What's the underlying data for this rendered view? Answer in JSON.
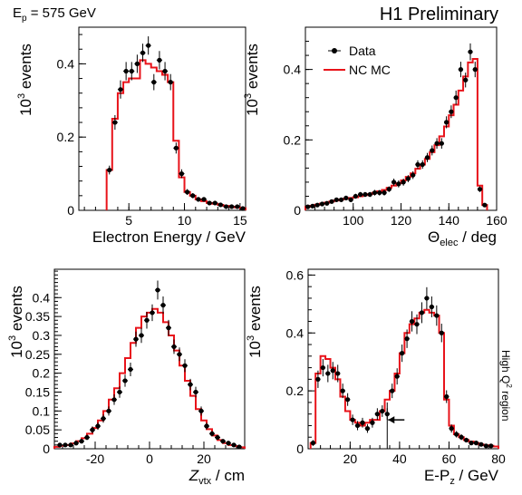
{
  "header": {
    "beam_prefix": "E",
    "beam_sub": "p",
    "beam_suffix": " = 575 GeV",
    "preliminary": "H1 Preliminary"
  },
  "legend": {
    "data_label": "Data",
    "mc_label": "NC MC",
    "placement": "top-left of top-right panel"
  },
  "side_label": {
    "prefix": "High Q",
    "sup": "2",
    "suffix": " region"
  },
  "colors": {
    "mc_line": "#e8131a",
    "data_marker": "#000000",
    "axis": "#000000",
    "background": "#ffffff"
  },
  "chart_data": [
    {
      "id": "electron-energy",
      "type": "line",
      "ylabel": {
        "base": "10",
        "sup": "3",
        "rest": " events"
      },
      "xlabel": [
        {
          "t": "Electron Energy / GeV"
        }
      ],
      "xlim": [
        0.5,
        15.5
      ],
      "ylim": [
        0,
        0.5
      ],
      "xticks": [
        5,
        10,
        15
      ],
      "yticks": [
        0,
        0.2,
        0.4
      ],
      "ytick_labels": [
        "0",
        "0.2",
        "0.4"
      ],
      "grid": false,
      "mc_edges": [
        3,
        3.5,
        4,
        4.5,
        5,
        5.5,
        6,
        6.5,
        7,
        7.5,
        8,
        8.5,
        9,
        9.5,
        10,
        10.5,
        11,
        11.5,
        12,
        12.5,
        13,
        13.5,
        14,
        14.5,
        15,
        15.5
      ],
      "mc_values": [
        0.11,
        0.25,
        0.32,
        0.35,
        0.36,
        0.36,
        0.41,
        0.4,
        0.39,
        0.38,
        0.37,
        0.35,
        0.19,
        0.09,
        0.05,
        0.04,
        0.03,
        0.025,
        0.02,
        0.018,
        0.015,
        0.012,
        0.01,
        0.008,
        0.006
      ],
      "data": {
        "x": [
          3.25,
          3.75,
          4.25,
          4.75,
          5.25,
          5.75,
          6.25,
          6.75,
          7.25,
          7.75,
          8.25,
          8.75,
          9.25,
          9.75,
          10.25,
          10.75,
          11.25,
          11.75,
          12.25,
          12.75,
          13.25,
          13.75,
          14.25,
          14.75,
          15.25
        ],
        "y": [
          0.11,
          0.24,
          0.33,
          0.38,
          0.38,
          0.4,
          0.43,
          0.45,
          0.35,
          0.41,
          0.38,
          0.35,
          0.17,
          0.1,
          0.05,
          0.04,
          0.03,
          0.03,
          0.02,
          0.02,
          0.015,
          0.01,
          0.01,
          0.01,
          0.005
        ],
        "err": [
          0.012,
          0.02,
          0.025,
          0.025,
          0.025,
          0.025,
          0.025,
          0.025,
          0.022,
          0.025,
          0.025,
          0.022,
          0.015,
          0.012,
          0.008,
          0.007,
          0.006,
          0.006,
          0.005,
          0.005,
          0.005,
          0.004,
          0.004,
          0.004,
          0.003
        ]
      }
    },
    {
      "id": "electron-theta",
      "type": "line",
      "ylabel": {
        "base": "10",
        "sup": "3",
        "rest": " events"
      },
      "xlabel": [
        {
          "t": "Θ"
        },
        {
          "t": "elec",
          "sub": true
        },
        {
          "t": " / deg"
        }
      ],
      "xlim": [
        80,
        160
      ],
      "ylim": [
        0,
        0.52
      ],
      "xticks": [
        100,
        120,
        140,
        160
      ],
      "yticks": [
        0,
        0.2,
        0.4
      ],
      "ytick_labels": [
        "0",
        "0.2",
        "0.4"
      ],
      "grid": false,
      "mc_edges": [
        80,
        82,
        84,
        86,
        88,
        90,
        92,
        94,
        96,
        98,
        100,
        102,
        104,
        106,
        108,
        110,
        112,
        114,
        116,
        118,
        120,
        122,
        124,
        126,
        128,
        130,
        132,
        134,
        136,
        138,
        140,
        142,
        144,
        146,
        148,
        150,
        152,
        154,
        156
      ],
      "mc_values": [
        0.01,
        0.013,
        0.016,
        0.019,
        0.022,
        0.025,
        0.028,
        0.031,
        0.033,
        0.035,
        0.037,
        0.04,
        0.043,
        0.046,
        0.05,
        0.054,
        0.058,
        0.064,
        0.07,
        0.077,
        0.085,
        0.095,
        0.105,
        0.118,
        0.13,
        0.146,
        0.165,
        0.185,
        0.21,
        0.238,
        0.27,
        0.3,
        0.34,
        0.38,
        0.42,
        0.43,
        0.07,
        0.015
      ],
      "data": {
        "x": [
          81,
          83,
          85,
          87,
          89,
          91,
          93,
          95,
          97,
          99,
          101,
          103,
          105,
          107,
          109,
          111,
          113,
          115,
          117,
          119,
          121,
          123,
          125,
          127,
          129,
          131,
          133,
          135,
          137,
          139,
          141,
          143,
          145,
          147,
          149,
          151,
          153,
          155
        ],
        "y": [
          0.01,
          0.012,
          0.015,
          0.018,
          0.02,
          0.025,
          0.03,
          0.03,
          0.035,
          0.03,
          0.04,
          0.045,
          0.045,
          0.045,
          0.05,
          0.05,
          0.05,
          0.06,
          0.08,
          0.075,
          0.08,
          0.09,
          0.1,
          0.13,
          0.13,
          0.15,
          0.17,
          0.19,
          0.19,
          0.25,
          0.28,
          0.32,
          0.4,
          0.37,
          0.45,
          0.4,
          0.06,
          0.015
        ],
        "err": [
          0.004,
          0.004,
          0.005,
          0.005,
          0.005,
          0.006,
          0.006,
          0.006,
          0.006,
          0.006,
          0.007,
          0.007,
          0.007,
          0.007,
          0.008,
          0.008,
          0.008,
          0.008,
          0.01,
          0.01,
          0.01,
          0.01,
          0.011,
          0.012,
          0.012,
          0.013,
          0.014,
          0.015,
          0.015,
          0.017,
          0.018,
          0.02,
          0.022,
          0.021,
          0.024,
          0.022,
          0.008,
          0.004
        ]
      }
    },
    {
      "id": "z-vertex",
      "type": "line",
      "ylabel": {
        "base": "10",
        "sup": "3",
        "rest": " events"
      },
      "xlabel": [
        {
          "t": "Z",
          "italic": true
        },
        {
          "t": "vtx",
          "sub": true
        },
        {
          "t": " / cm"
        }
      ],
      "xlim": [
        -35,
        35
      ],
      "ylim": [
        0,
        0.475
      ],
      "xticks": [
        -20,
        0,
        20
      ],
      "yticks": [
        0,
        0.05,
        0.1,
        0.15,
        0.2,
        0.25,
        0.3,
        0.35,
        0.4
      ],
      "ytick_labels": [
        "0",
        "0.05",
        "0.1",
        "0.15",
        "0.2",
        "0.25",
        "0.3",
        "0.35",
        "0.4"
      ],
      "grid": false,
      "mc_edges": [
        -35,
        -33,
        -31,
        -29,
        -27,
        -25,
        -23,
        -21,
        -19,
        -17,
        -15,
        -13,
        -11,
        -9,
        -7,
        -5,
        -3,
        -1,
        1,
        3,
        5,
        7,
        9,
        11,
        13,
        15,
        17,
        19,
        21,
        23,
        25,
        27,
        29,
        31,
        33,
        35
      ],
      "mc_values": [
        0.005,
        0.008,
        0.01,
        0.014,
        0.02,
        0.028,
        0.04,
        0.055,
        0.075,
        0.1,
        0.13,
        0.16,
        0.2,
        0.24,
        0.28,
        0.32,
        0.35,
        0.36,
        0.37,
        0.36,
        0.335,
        0.3,
        0.26,
        0.22,
        0.18,
        0.14,
        0.105,
        0.075,
        0.052,
        0.035,
        0.023,
        0.015,
        0.01,
        0.007,
        0.004
      ],
      "data": {
        "x": [
          -33,
          -31,
          -29,
          -27,
          -25,
          -23,
          -21,
          -19,
          -17,
          -15,
          -13,
          -11,
          -9,
          -7,
          -5,
          -3,
          -1,
          1,
          3,
          5,
          7,
          9,
          11,
          13,
          15,
          17,
          19,
          21,
          23,
          25,
          27,
          29,
          31,
          33
        ],
        "y": [
          0.01,
          0.01,
          0.01,
          0.015,
          0.02,
          0.03,
          0.05,
          0.06,
          0.08,
          0.1,
          0.13,
          0.15,
          0.18,
          0.21,
          0.29,
          0.3,
          0.34,
          0.36,
          0.42,
          0.38,
          0.32,
          0.27,
          0.25,
          0.22,
          0.17,
          0.15,
          0.1,
          0.06,
          0.04,
          0.03,
          0.02,
          0.015,
          0.01,
          0.005
        ],
        "err": [
          0.004,
          0.004,
          0.004,
          0.005,
          0.006,
          0.007,
          0.009,
          0.01,
          0.011,
          0.012,
          0.014,
          0.015,
          0.016,
          0.018,
          0.02,
          0.02,
          0.022,
          0.022,
          0.025,
          0.023,
          0.021,
          0.019,
          0.018,
          0.017,
          0.015,
          0.014,
          0.012,
          0.009,
          0.007,
          0.006,
          0.005,
          0.004,
          0.004,
          0.003
        ]
      }
    },
    {
      "id": "e-minus-pz",
      "type": "line",
      "ylabel": {
        "base": "10",
        "sup": "3",
        "rest": " events"
      },
      "xlabel": [
        {
          "t": "E-P"
        },
        {
          "t": "z",
          "sub": true
        },
        {
          "t": " / GeV"
        }
      ],
      "xlim": [
        3,
        80
      ],
      "ylim": [
        0,
        0.62
      ],
      "xticks": [
        20,
        40,
        60,
        80
      ],
      "yticks": [
        0,
        0.2,
        0.4,
        0.6
      ],
      "ytick_labels": [
        "0",
        "0.2",
        "0.4",
        "0.6"
      ],
      "grid": false,
      "cut_line_x": 35,
      "arrow_at": {
        "x": 35,
        "y": 0.1
      },
      "mc_edges": [
        4,
        6,
        8,
        10,
        12,
        14,
        16,
        18,
        20,
        22,
        24,
        26,
        28,
        30,
        32,
        34,
        36,
        38,
        40,
        42,
        44,
        46,
        48,
        50,
        52,
        54,
        56,
        58,
        60,
        62,
        64,
        66,
        68,
        70,
        72,
        74,
        76,
        78,
        80
      ],
      "mc_values": [
        0.02,
        0.26,
        0.32,
        0.31,
        0.28,
        0.24,
        0.18,
        0.13,
        0.1,
        0.09,
        0.08,
        0.09,
        0.1,
        0.1,
        0.13,
        0.17,
        0.2,
        0.26,
        0.33,
        0.4,
        0.43,
        0.45,
        0.47,
        0.48,
        0.47,
        0.46,
        0.4,
        0.17,
        0.08,
        0.05,
        0.04,
        0.03,
        0.025,
        0.02,
        0.015,
        0.012,
        0.01,
        0.008
      ],
      "data": {
        "x": [
          5,
          7,
          9,
          11,
          13,
          15,
          17,
          19,
          21,
          23,
          25,
          27,
          29,
          31,
          33,
          35,
          37,
          39,
          41,
          43,
          45,
          47,
          49,
          51,
          53,
          55,
          57,
          59,
          61,
          63,
          65,
          67,
          69,
          71,
          73,
          75,
          77
        ],
        "y": [
          0.02,
          0.24,
          0.28,
          0.26,
          0.27,
          0.26,
          0.2,
          0.17,
          0.1,
          0.08,
          0.09,
          0.07,
          0.09,
          0.12,
          0.13,
          0.12,
          0.2,
          0.25,
          0.33,
          0.38,
          0.44,
          0.43,
          0.47,
          0.52,
          0.49,
          0.46,
          0.4,
          0.18,
          0.07,
          0.05,
          0.04,
          0.03,
          0.02,
          0.02,
          0.015,
          0.01,
          0.01
        ],
        "err": [
          0.01,
          0.03,
          0.03,
          0.03,
          0.03,
          0.03,
          0.025,
          0.022,
          0.018,
          0.016,
          0.017,
          0.015,
          0.017,
          0.02,
          0.02,
          0.02,
          0.025,
          0.028,
          0.03,
          0.032,
          0.035,
          0.034,
          0.036,
          0.038,
          0.036,
          0.035,
          0.032,
          0.022,
          0.014,
          0.011,
          0.01,
          0.008,
          0.007,
          0.007,
          0.006,
          0.005,
          0.005
        ]
      }
    }
  ]
}
